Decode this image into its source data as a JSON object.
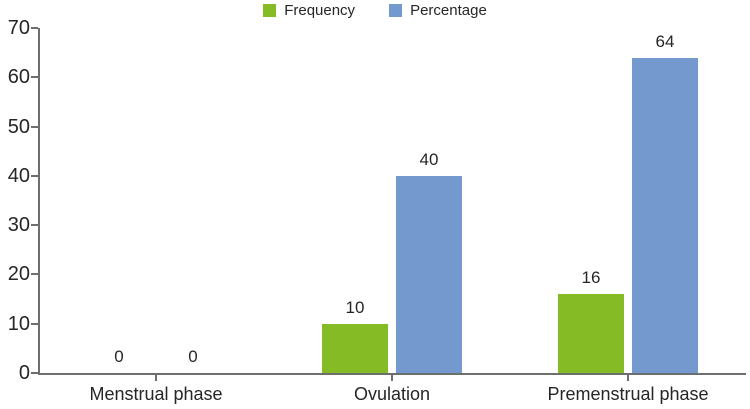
{
  "chart_data": {
    "type": "bar",
    "title": "",
    "xlabel": "",
    "ylabel": "",
    "categories": [
      "Menstrual phase",
      "Ovulation",
      "Premenstrual phase"
    ],
    "series": [
      {
        "name": "Frequency",
        "color": "#85BB25",
        "values": [
          0,
          10,
          16
        ]
      },
      {
        "name": "Percentage",
        "color": "#7499CE",
        "values": [
          0,
          40,
          64
        ]
      }
    ],
    "value_labels": {
      "Frequency": [
        "0",
        "10",
        "16"
      ],
      "Percentage": [
        "0",
        "40",
        "64"
      ]
    },
    "ylim": [
      0,
      70
    ],
    "ytick_step": 10,
    "ytick_labels": [
      "0",
      "10",
      "20",
      "30",
      "40",
      "50",
      "60",
      "70"
    ],
    "grid": false,
    "legend_position": "top-center",
    "axis_color": "#6D6E70",
    "text_color": "#262626",
    "background_color": "#FFFFFF"
  }
}
